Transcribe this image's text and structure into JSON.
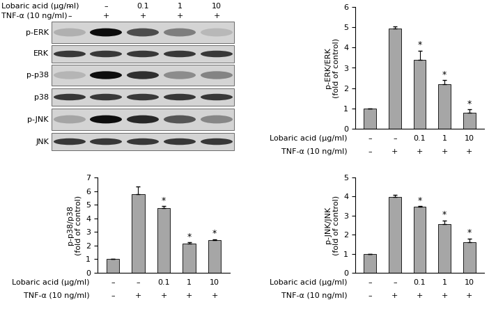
{
  "blot": {
    "treatments": [
      {
        "label": "Lobaric acid (µg/ml)",
        "values": [
          "–",
          "–",
          "0.1",
          "1",
          "10"
        ]
      },
      {
        "label": "TNF-α (10 ng/ml)",
        "values": [
          "–",
          "+",
          "+",
          "+",
          "+"
        ]
      }
    ],
    "panels": [
      "p-ERK",
      "ERK",
      "p-p38",
      "p38",
      "p-JNK",
      "JNK"
    ]
  },
  "chart_data": [
    {
      "type": "bar",
      "categories": [
        null,
        null,
        null,
        null,
        null
      ],
      "values": [
        1,
        4.95,
        3.4,
        2.2,
        0.8
      ],
      "errors": [
        0,
        0.1,
        0.45,
        0.2,
        0.15
      ],
      "significance": [
        null,
        null,
        "*",
        "*",
        "*"
      ],
      "y_label": "p-ERK/ERK\n(fold of control)",
      "treatments": [
        {
          "label": "Lobaric acid (µg/ml)",
          "values": [
            "–",
            "–",
            "0.1",
            "1",
            "10"
          ]
        },
        {
          "label": "TNF-α (10 ng/ml)",
          "values": [
            "–",
            "+",
            "+",
            "+",
            "+"
          ]
        }
      ],
      "color": "#a6a6a6",
      "ylim": [
        0,
        6
      ],
      "yticks": [
        0,
        1,
        2,
        3,
        4,
        5,
        6
      ],
      "grid": false
    },
    {
      "type": "bar",
      "categories": [
        null,
        null,
        null,
        null,
        null
      ],
      "values": [
        1,
        5.75,
        4.75,
        2.15,
        2.4
      ],
      "errors": [
        0,
        0.6,
        0.15,
        0.1,
        0.07
      ],
      "significance": [
        null,
        null,
        "*",
        "*",
        "*"
      ],
      "y_label": "p-p38/p38\n(fold of control)",
      "treatments": [
        {
          "label": "Lobaric acid (µg/ml)",
          "values": [
            "–",
            "–",
            "0.1",
            "1",
            "10"
          ]
        },
        {
          "label": "TNF-α (10 ng/ml)",
          "values": [
            "–",
            "+",
            "+",
            "+",
            "+"
          ]
        }
      ],
      "color": "#a6a6a6",
      "ylim": [
        0,
        7
      ],
      "yticks": [
        0,
        1,
        2,
        3,
        4,
        5,
        6,
        7
      ],
      "grid": false
    },
    {
      "type": "bar",
      "categories": [
        null,
        null,
        null,
        null,
        null
      ],
      "values": [
        1,
        3.98,
        3.45,
        2.55,
        1.6
      ],
      "errors": [
        0,
        0.1,
        0.05,
        0.2,
        0.2
      ],
      "significance": [
        null,
        null,
        "*",
        "*",
        "*"
      ],
      "y_label": "p-JNK/JNK\n(fold of control)",
      "treatments": [
        {
          "label": "Lobaric acid (µg/ml)",
          "values": [
            "–",
            "–",
            "0.1",
            "1",
            "10"
          ]
        },
        {
          "label": "TNF-α (10 ng/ml)",
          "values": [
            "–",
            "+",
            "+",
            "+",
            "+"
          ]
        }
      ],
      "color": "#a6a6a6",
      "ylim": [
        0,
        5
      ],
      "yticks": [
        0,
        1,
        2,
        3,
        4,
        5
      ],
      "grid": false
    }
  ]
}
